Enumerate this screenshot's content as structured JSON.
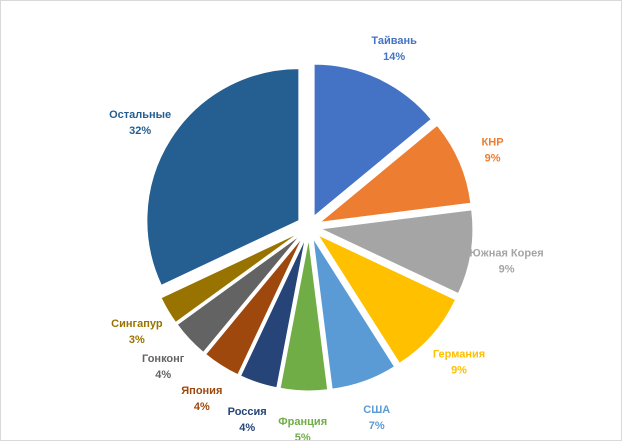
{
  "chart_data": {
    "type": "pie",
    "exploded": true,
    "start_angle_deg": 0,
    "direction": "clockwise",
    "slices": [
      {
        "label": "Тайвань",
        "value": 14,
        "value_label": "14%",
        "color": "#4472C4"
      },
      {
        "label": "КНР",
        "value": 9,
        "value_label": "9%",
        "color": "#ED7D31"
      },
      {
        "label": "Южная Корея",
        "value": 9,
        "value_label": "9%",
        "color": "#A5A5A5"
      },
      {
        "label": "Германия",
        "value": 9,
        "value_label": "9%",
        "color": "#FFC000"
      },
      {
        "label": "США",
        "value": 7,
        "value_label": "7%",
        "color": "#5B9BD5"
      },
      {
        "label": "Франция",
        "value": 5,
        "value_label": "5%",
        "color": "#70AD47"
      },
      {
        "label": "Россия",
        "value": 4,
        "value_label": "4%",
        "color": "#264478"
      },
      {
        "label": "Япония",
        "value": 4,
        "value_label": "4%",
        "color": "#9E480E"
      },
      {
        "label": "Гонконг",
        "value": 4,
        "value_label": "4%",
        "color": "#636363"
      },
      {
        "label": "Сингапур",
        "value": 3,
        "value_label": "3%",
        "color": "#997300"
      },
      {
        "label": "Остальные",
        "value": 32,
        "value_label": "32%",
        "color": "#255E91"
      }
    ]
  }
}
